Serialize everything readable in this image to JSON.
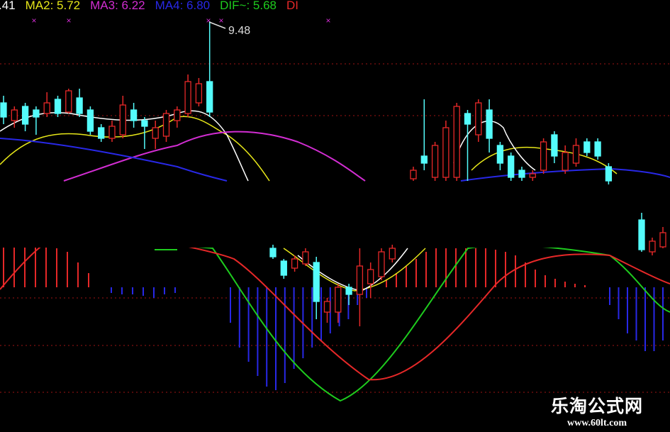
{
  "legend": {
    "ma1": ".41",
    "ma2": "MA2: 5.72",
    "ma3": "MA3: 6.22",
    "ma4": "MA4: 6.80",
    "dif": "DIF~: 5.68",
    "dea": "DI"
  },
  "colors": {
    "ma1": "#ffffff",
    "ma2": "#e6e619",
    "ma3": "#d22dd2",
    "ma4": "#2828e6",
    "dif": "#1ecc1e",
    "dea": "#e62828",
    "up": "#e62828",
    "down": "#54fcfc",
    "grid": "#a01414"
  },
  "watermark": {
    "name": "乐淘公式网",
    "url": "www.60lt.com"
  },
  "chart_data": {
    "type": "candlestick",
    "high_label": "9.48",
    "grid": "dashed horizontal",
    "candle_groups": [
      [
        [
          7.18,
          6.78,
          7.38,
          6.58
        ],
        [
          6.68,
          6.98,
          7.08,
          6.48
        ],
        [
          7.08,
          6.58,
          7.18,
          6.38
        ],
        [
          6.98,
          6.78,
          7.08,
          6.28
        ],
        [
          6.88,
          7.18,
          7.48,
          6.78
        ],
        [
          7.28,
          6.88,
          7.38,
          6.78
        ],
        [
          6.92,
          7.52,
          7.58,
          6.88
        ],
        [
          7.32,
          6.88,
          7.58,
          6.78
        ],
        [
          6.98,
          6.38,
          7.08,
          6.28
        ],
        [
          6.48,
          6.18,
          6.58,
          6.08
        ],
        [
          6.18,
          6.52,
          6.68,
          6.08
        ],
        [
          6.28,
          7.12,
          7.38,
          6.18
        ],
        [
          6.98,
          6.68,
          7.18,
          6.48
        ],
        [
          6.68,
          6.52,
          6.78,
          5.88
        ],
        [
          6.18,
          6.48,
          6.68,
          5.88
        ],
        [
          6.24,
          6.88,
          6.98,
          6.08
        ],
        [
          6.68,
          6.98,
          7.08,
          6.48
        ],
        [
          6.88,
          7.78,
          7.98,
          6.78
        ],
        [
          7.18,
          7.72,
          7.88,
          7.08
        ],
        [
          7.78,
          6.92,
          9.48,
          6.78
        ]
      ],
      [
        [
          5.04,
          5.28,
          5.38,
          4.98
        ],
        [
          5.68,
          5.48,
          7.28,
          5.28
        ],
        [
          5.08,
          5.98,
          6.08,
          4.98
        ],
        [
          5.08,
          6.48,
          6.68,
          4.98
        ],
        [
          5.08,
          7.08,
          7.18,
          4.98
        ],
        [
          6.88,
          6.58,
          6.98,
          4.98
        ],
        [
          6.28,
          7.18,
          7.28,
          6.08
        ],
        [
          6.98,
          6.18,
          7.28,
          5.78
        ],
        [
          5.98,
          5.48,
          6.08,
          5.28
        ],
        [
          5.68,
          5.08,
          5.78,
          4.98
        ],
        [
          5.28,
          5.08,
          5.38,
          4.98
        ],
        [
          5.08,
          5.18,
          5.28,
          4.98
        ],
        [
          5.28,
          6.08,
          6.18,
          5.18
        ],
        [
          6.28,
          5.68,
          6.38,
          5.48
        ],
        [
          5.28,
          5.78,
          5.98,
          5.18
        ],
        [
          5.48,
          5.98,
          6.18,
          5.38
        ],
        [
          6.08,
          5.78,
          6.18,
          5.68
        ],
        [
          6.08,
          5.68,
          6.18,
          5.58
        ],
        [
          5.38,
          4.98,
          5.48,
          4.88
        ]
      ],
      [
        [
          3.08,
          2.84,
          3.18,
          2.78
        ],
        [
          2.72,
          2.32,
          2.78,
          2.22
        ],
        [
          2.52,
          2.78,
          2.88,
          2.42
        ],
        [
          2.64,
          2.98,
          3.08,
          2.58
        ],
        [
          2.68,
          1.58,
          2.84,
          1.08
        ],
        [
          1.28,
          1.58,
          1.68,
          0.98
        ],
        [
          1.28,
          1.98,
          2.08,
          0.98
        ],
        [
          1.98,
          1.78,
          2.08,
          1.48
        ],
        [
          1.78,
          2.58,
          3.08,
          0.88
        ],
        [
          2.08,
          2.48,
          2.68,
          1.68
        ],
        [
          2.28,
          2.98,
          3.08,
          2.18
        ],
        [
          2.78,
          3.08,
          3.18,
          2.68
        ]
      ],
      [
        [
          3.88,
          3.04,
          4.08,
          2.98
        ],
        [
          2.98,
          3.28,
          3.38,
          2.88
        ],
        [
          3.12,
          3.52,
          3.68,
          3.08
        ]
      ]
    ],
    "macd_groups": [
      [
        1.2,
        1.15,
        1.0,
        0.8,
        0.6,
        0.55,
        0.5,
        0.35,
        0.2
      ],
      [
        -0.08,
        -0.1,
        -0.1,
        -0.12,
        -0.15,
        -0.1,
        -0.08
      ],
      [
        -0.5,
        -0.85,
        -1.05,
        -1.25,
        -1.4,
        -1.45,
        -1.35,
        -1.15,
        -1.0,
        -0.85,
        -0.75,
        -0.65,
        -0.55,
        -0.45,
        -0.25,
        -0.15
      ],
      [
        0.1,
        0.2,
        0.3,
        0.4,
        0.5,
        0.55,
        0.55,
        0.55,
        0.55,
        0.55,
        0.55,
        0.53,
        0.5,
        0.45,
        0.35,
        0.25,
        0.17,
        0.12,
        0.08,
        0.05,
        0.03
      ],
      [
        -0.25,
        -0.45,
        -0.65,
        -0.75,
        -0.9,
        -0.9,
        -0.75
      ]
    ]
  }
}
